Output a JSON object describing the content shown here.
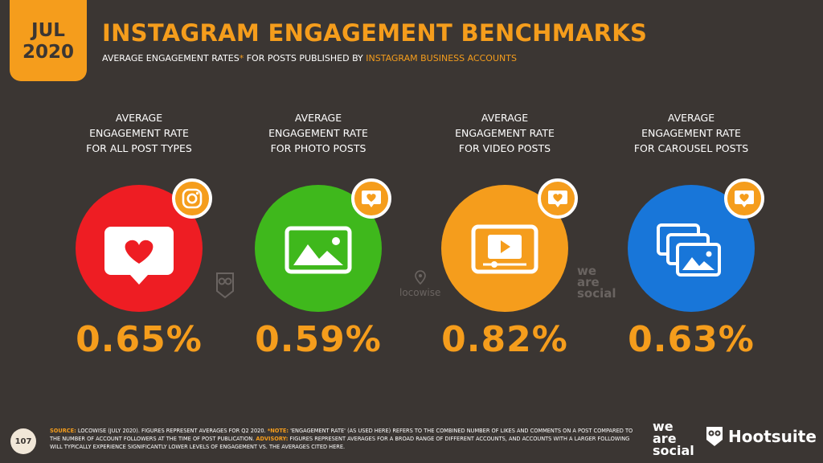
{
  "badge": {
    "month": "JUL",
    "year": "2020"
  },
  "title": "INSTAGRAM ENGAGEMENT BENCHMARKS",
  "subtitle": {
    "part1": "AVERAGE ENGAGEMENT RATES",
    "asterisk": "*",
    "part2": " FOR POSTS PUBLISHED BY ",
    "part3": "INSTAGRAM BUSINESS ACCOUNTS"
  },
  "colors": {
    "accent": "#f59d1c",
    "background": "#3b3633",
    "red": "#ee1d23",
    "green": "#3fb81c",
    "orange": "#f59d1c",
    "blue": "#1876d9"
  },
  "chart_data": {
    "type": "table",
    "categories": [
      "ALL POST TYPES",
      "PHOTO POSTS",
      "VIDEO POSTS",
      "CAROUSEL POSTS"
    ],
    "values": [
      0.65,
      0.59,
      0.82,
      0.63
    ],
    "unit": "%",
    "items": [
      {
        "label1": "AVERAGE",
        "label2": "ENGAGEMENT RATE",
        "label3": "FOR ALL POST TYPES",
        "value": "0.65%",
        "icon": "instagram-heart-icon",
        "badge_icon": "instagram-icon",
        "color": "#ee1d23"
      },
      {
        "label1": "AVERAGE",
        "label2": "ENGAGEMENT RATE",
        "label3": "FOR PHOTO POSTS",
        "value": "0.59%",
        "icon": "photo-icon",
        "badge_icon": "heart-bubble-icon",
        "color": "#3fb81c"
      },
      {
        "label1": "AVERAGE",
        "label2": "ENGAGEMENT RATE",
        "label3": "FOR VIDEO POSTS",
        "value": "0.82%",
        "icon": "video-icon",
        "badge_icon": "heart-bubble-icon",
        "color": "#f59d1c"
      },
      {
        "label1": "AVERAGE",
        "label2": "ENGAGEMENT RATE",
        "label3": "FOR CAROUSEL POSTS",
        "value": "0.63%",
        "icon": "carousel-icon",
        "badge_icon": "heart-bubble-icon",
        "color": "#1876d9"
      }
    ]
  },
  "watermarks": {
    "locowise": "locowise",
    "was1": "we",
    "was2": "are",
    "was3": "social"
  },
  "footer": {
    "page": "107",
    "source_key": "SOURCE:",
    "source_text": " LOCOWISE (JULY 2020). FIGURES REPRESENT AVERAGES FOR Q2 2020. ",
    "note_key": "*NOTE:",
    "note_text": " 'ENGAGEMENT RATE' (AS USED HERE) REFERS TO THE COMBINED NUMBER OF LIKES AND COMMENTS ON A POST COMPARED TO THE NUMBER OF ACCOUNT FOLLOWERS AT THE TIME OF POST PUBLICATION. ",
    "advisory_key": "ADVISORY:",
    "advisory_text": " FIGURES REPRESENT AVERAGES FOR A BROAD RANGE OF DIFFERENT ACCOUNTS, AND ACCOUNTS WITH A LARGER FOLLOWING WILL TYPICALLY EXPERIENCE SIGNIFICANTLY LOWER LEVELS OF ENGAGEMENT vs. THE AVERAGES CITED HERE."
  },
  "logos": {
    "was1": "we",
    "was2": "are",
    "was3": "social",
    "hootsuite": "Hootsuite"
  }
}
